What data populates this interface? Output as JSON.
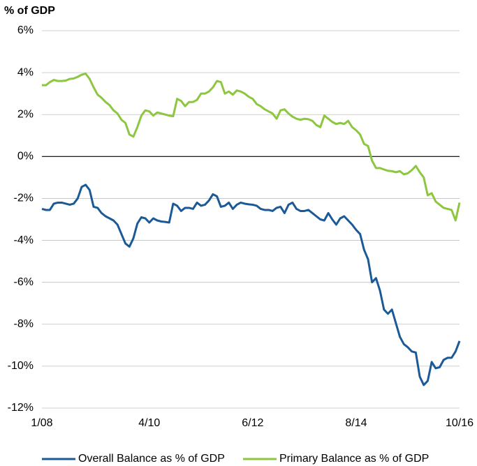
{
  "chart_data": {
    "type": "line",
    "title": "% of GDP",
    "categories": [
      "1/08",
      null,
      null,
      null,
      null,
      null,
      null,
      null,
      null,
      null,
      null,
      null,
      null,
      null,
      null,
      null,
      null,
      null,
      null,
      null,
      null,
      null,
      null,
      null,
      null,
      null,
      null,
      "4/10",
      null,
      null,
      null,
      null,
      null,
      null,
      null,
      null,
      null,
      null,
      null,
      null,
      null,
      null,
      null,
      null,
      null,
      null,
      null,
      null,
      null,
      null,
      null,
      null,
      null,
      "6/12",
      null,
      null,
      null,
      null,
      null,
      null,
      null,
      null,
      null,
      null,
      null,
      null,
      null,
      null,
      null,
      null,
      null,
      null,
      null,
      null,
      null,
      null,
      null,
      null,
      null,
      "8/14",
      null,
      null,
      null,
      null,
      null,
      null,
      null,
      null,
      null,
      null,
      null,
      null,
      null,
      null,
      null,
      null,
      null,
      null,
      null,
      null,
      null,
      null,
      null,
      null,
      null,
      "10/16"
    ],
    "series": [
      {
        "name": "Overall Balance as % of GDP",
        "color": "#1b5a96",
        "values": [
          -2.5,
          -2.55,
          -2.55,
          -2.25,
          -2.2,
          -2.2,
          -2.25,
          -2.3,
          -2.25,
          -2.0,
          -1.45,
          -1.35,
          -1.6,
          -2.4,
          -2.45,
          -2.7,
          -2.85,
          -2.95,
          -3.05,
          -3.25,
          -3.7,
          -4.15,
          -4.3,
          -3.9,
          -3.2,
          -2.9,
          -2.95,
          -3.15,
          -2.95,
          -3.05,
          -3.1,
          -3.12,
          -3.15,
          -2.25,
          -2.35,
          -2.6,
          -2.45,
          -2.45,
          -2.5,
          -2.2,
          -2.35,
          -2.3,
          -2.1,
          -1.8,
          -1.9,
          -2.4,
          -2.35,
          -2.2,
          -2.5,
          -2.3,
          -2.2,
          -2.25,
          -2.28,
          -2.3,
          -2.35,
          -2.5,
          -2.55,
          -2.55,
          -2.6,
          -2.45,
          -2.4,
          -2.7,
          -2.3,
          -2.2,
          -2.5,
          -2.6,
          -2.6,
          -2.55,
          -2.7,
          -2.85,
          -3.0,
          -3.05,
          -2.7,
          -3.0,
          -3.25,
          -2.95,
          -2.85,
          -3.05,
          -3.25,
          -3.5,
          -3.7,
          -4.45,
          -4.9,
          -6.0,
          -5.8,
          -6.4,
          -7.3,
          -7.5,
          -7.3,
          -7.95,
          -8.6,
          -8.95,
          -9.1,
          -9.3,
          -9.35,
          -10.5,
          -10.9,
          -10.7,
          -9.8,
          -10.1,
          -10.05,
          -9.7,
          -9.6,
          -9.6,
          -9.3,
          -8.8
        ]
      },
      {
        "name": "Primary Balance as % of GDP",
        "color": "#8dc63f",
        "values": [
          3.4,
          3.4,
          3.55,
          3.65,
          3.6,
          3.6,
          3.62,
          3.7,
          3.72,
          3.8,
          3.9,
          3.95,
          3.7,
          3.3,
          2.95,
          2.8,
          2.6,
          2.45,
          2.2,
          2.05,
          1.75,
          1.6,
          1.05,
          0.95,
          1.4,
          1.95,
          2.2,
          2.15,
          1.95,
          2.1,
          2.05,
          2.0,
          1.95,
          1.92,
          2.75,
          2.65,
          2.4,
          2.6,
          2.6,
          2.7,
          3.0,
          3.0,
          3.1,
          3.3,
          3.6,
          3.55,
          3.0,
          3.1,
          2.95,
          3.15,
          3.1,
          3.0,
          2.85,
          2.75,
          2.5,
          2.4,
          2.25,
          2.15,
          2.05,
          1.8,
          2.2,
          2.25,
          2.05,
          1.9,
          1.8,
          1.75,
          1.8,
          1.78,
          1.7,
          1.5,
          1.4,
          1.95,
          1.8,
          1.65,
          1.55,
          1.6,
          1.55,
          1.7,
          1.4,
          1.25,
          1.05,
          0.6,
          0.5,
          -0.2,
          -0.55,
          -0.55,
          -0.62,
          -0.68,
          -0.7,
          -0.75,
          -0.7,
          -0.85,
          -0.8,
          -0.65,
          -0.45,
          -0.75,
          -1.0,
          -1.85,
          -1.75,
          -2.15,
          -2.3,
          -2.45,
          -2.5,
          -2.55,
          -3.05,
          -2.2
        ]
      }
    ],
    "ylim": [
      -12,
      6
    ],
    "yticks": [
      {
        "value": -12,
        "label": "-12%"
      },
      {
        "value": -10,
        "label": "-10%"
      },
      {
        "value": -8,
        "label": "-8%"
      },
      {
        "value": -6,
        "label": "-6%"
      },
      {
        "value": -4,
        "label": "-4%"
      },
      {
        "value": -2,
        "label": "-2%"
      },
      {
        "value": 0,
        "label": "0%"
      },
      {
        "value": 2,
        "label": "2%"
      },
      {
        "value": 4,
        "label": "4%"
      },
      {
        "value": 6,
        "label": "6%"
      }
    ],
    "grid": true,
    "legend": "bottom"
  }
}
